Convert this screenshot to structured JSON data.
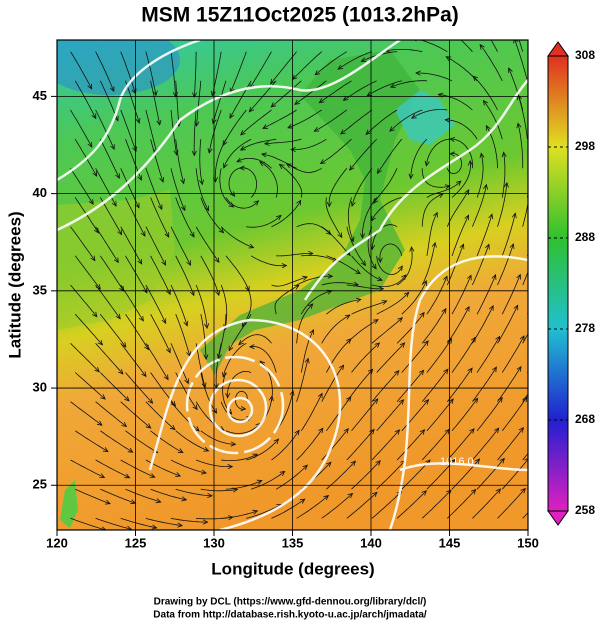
{
  "title": "MSM 15Z11Oct2025 (1013.2hPa)",
  "x_axis": {
    "label": "Longitude (degrees)",
    "lim": [
      120,
      150
    ],
    "ticks": [
      120,
      125,
      130,
      135,
      140,
      145,
      150
    ]
  },
  "y_axis": {
    "label": "Latitude  (degrees)",
    "lim": [
      22.7,
      47.9
    ],
    "ticks": [
      25,
      30,
      35,
      40,
      45
    ]
  },
  "colorbar": {
    "lim": [
      258,
      308
    ],
    "ticks": [
      258,
      268,
      278,
      288,
      298,
      308
    ],
    "colors": [
      "#e020c0",
      "#2020d0",
      "#20c0d0",
      "#30c030",
      "#e0e020",
      "#e03020"
    ]
  },
  "contour_labels": [
    "1016.0"
  ],
  "footer": [
    "Drawing by DCL (https://www.gfd-dennou.org/library/dcl/)",
    "Data from http://database.rish.kyoto-u.ac.jp/arch/jmadata/"
  ]
}
